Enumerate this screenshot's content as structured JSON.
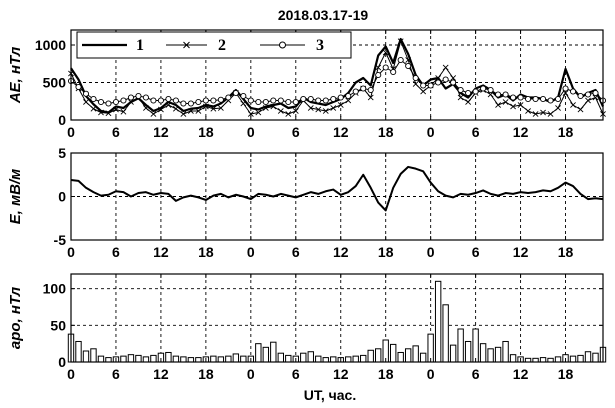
{
  "title": "2018.03.17-19",
  "xlabel": "UT,  час.",
  "chart_data": [
    {
      "type": "line",
      "panel": "AE",
      "ylabel": "AE, нТл",
      "ylim": [
        0,
        1200
      ],
      "yticks": [
        0,
        500,
        1000
      ],
      "xlim": [
        0,
        71
      ],
      "xtick_values": [
        0,
        6,
        12,
        18,
        24,
        30,
        36,
        42,
        48,
        54,
        60,
        66
      ],
      "xtick_labels": [
        "0",
        "6",
        "12",
        "18",
        "0",
        "6",
        "12",
        "18",
        "0",
        "6",
        "12",
        "18"
      ],
      "grid": true,
      "legend_placement": "top-left",
      "series": [
        {
          "name": "1",
          "marker": "none",
          "x": [
            0,
            1,
            2,
            3,
            4,
            5,
            6,
            7,
            8,
            9,
            10,
            11,
            12,
            13,
            14,
            15,
            16,
            17,
            18,
            19,
            20,
            21,
            22,
            23,
            24,
            25,
            26,
            27,
            28,
            29,
            30,
            31,
            32,
            33,
            34,
            35,
            36,
            37,
            38,
            39,
            40,
            41,
            42,
            43,
            44,
            45,
            46,
            47,
            48,
            49,
            50,
            51,
            52,
            53,
            54,
            55,
            56,
            57,
            58,
            59,
            60,
            61,
            62,
            63,
            64,
            65,
            66,
            67,
            68,
            69,
            70,
            71
          ],
          "values": [
            690,
            540,
            320,
            210,
            120,
            100,
            180,
            160,
            240,
            290,
            200,
            120,
            160,
            240,
            200,
            120,
            150,
            160,
            200,
            180,
            220,
            300,
            400,
            280,
            160,
            140,
            180,
            200,
            220,
            160,
            180,
            300,
            240,
            220,
            200,
            240,
            280,
            360,
            500,
            560,
            460,
            860,
            980,
            760,
            1080,
            880,
            600,
            460,
            540,
            560,
            420,
            480,
            360,
            300,
            420,
            460,
            400,
            300,
            340,
            260,
            340,
            300,
            300,
            280,
            240,
            300,
            680,
            420,
            300,
            360,
            400,
            180
          ]
        },
        {
          "name": "2",
          "marker": "x",
          "x": [
            0,
            1,
            2,
            3,
            4,
            5,
            6,
            7,
            8,
            9,
            10,
            11,
            12,
            13,
            14,
            15,
            16,
            17,
            18,
            19,
            20,
            21,
            22,
            23,
            24,
            25,
            26,
            27,
            28,
            29,
            30,
            31,
            32,
            33,
            34,
            35,
            36,
            37,
            38,
            39,
            40,
            41,
            42,
            43,
            44,
            45,
            46,
            47,
            48,
            49,
            50,
            51,
            52,
            53,
            54,
            55,
            56,
            57,
            58,
            59,
            60,
            61,
            62,
            63,
            64,
            65,
            66,
            67,
            68,
            69,
            70,
            71
          ],
          "values": [
            620,
            420,
            240,
            150,
            100,
            90,
            140,
            110,
            240,
            300,
            160,
            80,
            140,
            200,
            150,
            80,
            120,
            120,
            180,
            150,
            160,
            260,
            360,
            220,
            80,
            100,
            160,
            180,
            120,
            80,
            120,
            260,
            160,
            140,
            120,
            160,
            200,
            260,
            360,
            420,
            300,
            700,
            900,
            680,
            1050,
            800,
            480,
            380,
            460,
            560,
            700,
            560,
            300,
            240,
            360,
            400,
            340,
            200,
            240,
            180,
            200,
            120,
            80,
            100,
            80,
            160,
            360,
            200,
            140,
            260,
            300,
            80
          ]
        },
        {
          "name": "3",
          "marker": "o",
          "x": [
            0,
            1,
            2,
            3,
            4,
            5,
            6,
            7,
            8,
            9,
            10,
            11,
            12,
            13,
            14,
            15,
            16,
            17,
            18,
            19,
            20,
            21,
            22,
            23,
            24,
            25,
            26,
            27,
            28,
            29,
            30,
            31,
            32,
            33,
            34,
            35,
            36,
            37,
            38,
            39,
            40,
            41,
            42,
            43,
            44,
            45,
            46,
            47,
            48,
            49,
            50,
            51,
            52,
            53,
            54,
            55,
            56,
            57,
            58,
            59,
            60,
            61,
            62,
            63,
            64,
            65,
            66,
            67,
            68,
            69,
            70,
            71
          ],
          "values": [
            520,
            440,
            350,
            280,
            240,
            220,
            240,
            260,
            300,
            320,
            300,
            260,
            260,
            280,
            260,
            220,
            220,
            240,
            260,
            260,
            270,
            300,
            360,
            320,
            260,
            240,
            240,
            260,
            260,
            240,
            240,
            280,
            280,
            260,
            260,
            280,
            300,
            320,
            380,
            420,
            400,
            600,
            700,
            640,
            800,
            720,
            560,
            460,
            460,
            500,
            540,
            500,
            400,
            360,
            380,
            420,
            400,
            340,
            340,
            300,
            300,
            280,
            280,
            280,
            260,
            280,
            420,
            380,
            320,
            340,
            360,
            260
          ]
        }
      ]
    },
    {
      "type": "line",
      "panel": "E",
      "ylabel": "E, мВ/м",
      "ylim": [
        -5,
        5
      ],
      "yticks": [
        -5,
        0,
        5
      ],
      "xlim": [
        0,
        71
      ],
      "xtick_values": [
        0,
        6,
        12,
        18,
        24,
        30,
        36,
        42,
        48,
        54,
        60,
        66
      ],
      "xtick_labels": [
        "0",
        "6",
        "12",
        "18",
        "0",
        "6",
        "12",
        "18",
        "0",
        "6",
        "12",
        "18"
      ],
      "grid": true,
      "series": [
        {
          "x": [
            0,
            1,
            2,
            3,
            4,
            5,
            6,
            7,
            8,
            9,
            10,
            11,
            12,
            13,
            14,
            15,
            16,
            17,
            18,
            19,
            20,
            21,
            22,
            23,
            24,
            25,
            26,
            27,
            28,
            29,
            30,
            31,
            32,
            33,
            34,
            35,
            36,
            37,
            38,
            39,
            40,
            41,
            42,
            43,
            44,
            45,
            46,
            47,
            48,
            49,
            50,
            51,
            52,
            53,
            54,
            55,
            56,
            57,
            58,
            59,
            60,
            61,
            62,
            63,
            64,
            65,
            66,
            67,
            68,
            69,
            70,
            71
          ],
          "values": [
            1.9,
            1.8,
            1.0,
            0.5,
            0.1,
            0.2,
            0.6,
            0.5,
            0.0,
            0.4,
            0.5,
            0.2,
            0.4,
            0.3,
            -0.5,
            -0.1,
            0.1,
            -0.1,
            -0.4,
            0.1,
            0.3,
            -0.1,
            0.2,
            0.0,
            -0.3,
            0.3,
            0.2,
            0.0,
            0.3,
            0.1,
            -0.1,
            0.2,
            0.5,
            0.3,
            0.6,
            0.8,
            0.2,
            0.5,
            1.2,
            2.5,
            1.0,
            -0.7,
            -1.6,
            1.0,
            2.6,
            3.4,
            3.2,
            2.9,
            1.6,
            0.6,
            0.1,
            -0.1,
            0.3,
            0.2,
            0.4,
            0.7,
            0.3,
            0.1,
            0.4,
            0.3,
            0.5,
            0.4,
            0.5,
            0.7,
            0.6,
            1.0,
            1.6,
            1.2,
            0.3,
            -0.3,
            -0.2,
            -0.3
          ]
        }
      ]
    },
    {
      "type": "bar",
      "panel": "apo",
      "ylabel": "apo, нТл",
      "ylim": [
        0,
        120
      ],
      "yticks": [
        0,
        50,
        100
      ],
      "xlim": [
        0,
        71
      ],
      "xtick_values": [
        0,
        6,
        12,
        18,
        24,
        30,
        36,
        42,
        48,
        54,
        60,
        66
      ],
      "xtick_labels": [
        "0",
        "6",
        "12",
        "18",
        "0",
        "6",
        "12",
        "18",
        "0",
        "6",
        "12",
        "18"
      ],
      "grid": true,
      "series": [
        {
          "x": [
            0,
            1,
            2,
            3,
            4,
            5,
            6,
            7,
            8,
            9,
            10,
            11,
            12,
            13,
            14,
            15,
            16,
            17,
            18,
            19,
            20,
            21,
            22,
            23,
            24,
            25,
            26,
            27,
            28,
            29,
            30,
            31,
            32,
            33,
            34,
            35,
            36,
            37,
            38,
            39,
            40,
            41,
            42,
            43,
            44,
            45,
            46,
            47,
            48,
            49,
            50,
            51,
            52,
            53,
            54,
            55,
            56,
            57,
            58,
            59,
            60,
            61,
            62,
            63,
            64,
            65,
            66,
            67,
            68,
            69,
            70,
            71
          ],
          "values": [
            38,
            28,
            15,
            18,
            8,
            6,
            7,
            8,
            10,
            9,
            7,
            9,
            12,
            13,
            8,
            7,
            6,
            6,
            7,
            8,
            7,
            8,
            11,
            8,
            8,
            25,
            20,
            27,
            12,
            9,
            8,
            12,
            14,
            8,
            6,
            7,
            6,
            7,
            8,
            9,
            16,
            18,
            30,
            24,
            13,
            18,
            22,
            12,
            38,
            110,
            78,
            23,
            45,
            28,
            45,
            25,
            18,
            20,
            28,
            10,
            7,
            5,
            5,
            6,
            5,
            7,
            10,
            8,
            9,
            14,
            12,
            20
          ]
        }
      ]
    }
  ]
}
